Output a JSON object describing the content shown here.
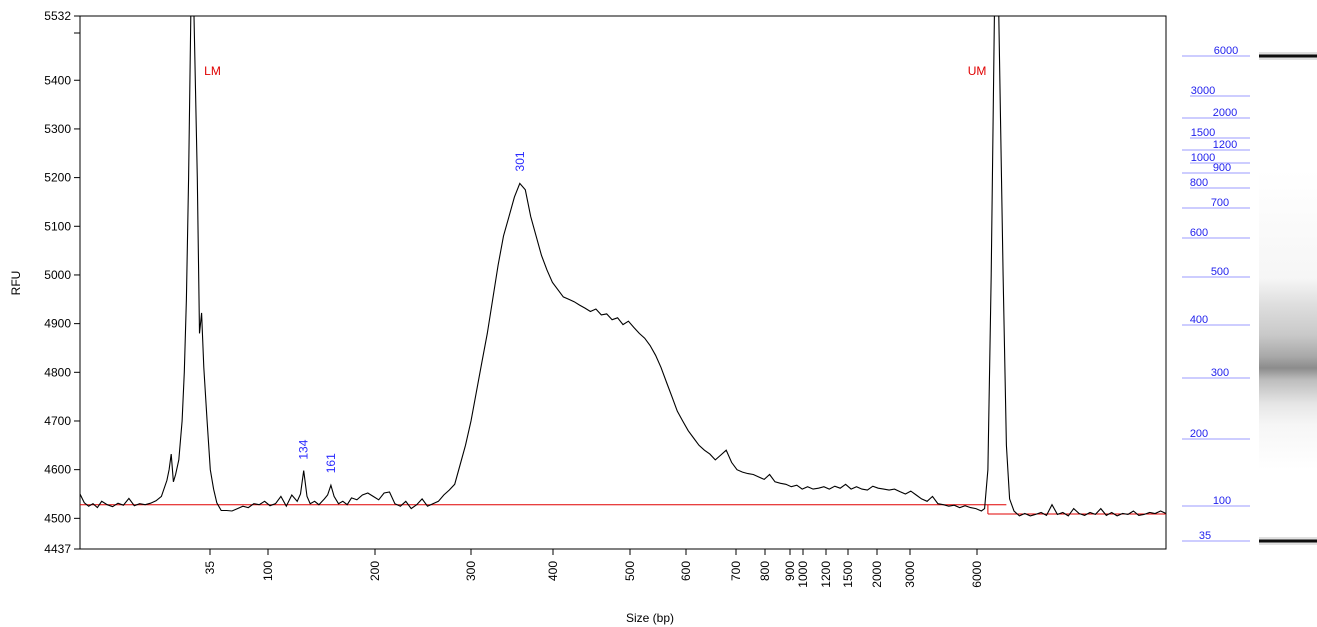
{
  "chart_data": {
    "type": "line",
    "xlabel": "Size (bp)",
    "ylabel": "RFU",
    "ylim": [
      4437,
      5532
    ],
    "y_ticks": [
      "5532",
      "5400",
      "5300",
      "5200",
      "5100",
      "5000",
      "4900",
      "4800",
      "4700",
      "4600",
      "4500",
      "4437"
    ],
    "x_ticks": [
      "35",
      "100",
      "200",
      "300",
      "400",
      "500",
      "600",
      "700",
      "800",
      "900",
      "1000",
      "1200",
      "1500",
      "2000",
      "3000",
      "6000"
    ],
    "baseline_rfu": 4528,
    "markers": [
      {
        "label": "LM",
        "size_bp": 35
      },
      {
        "label": "UM",
        "size_bp": 6000
      }
    ],
    "peak_labels": [
      {
        "label": "134",
        "size_bp": 134,
        "rfu": 4596
      },
      {
        "label": "161",
        "size_bp": 161,
        "rfu": 4568
      },
      {
        "label": "301",
        "size_bp": 301,
        "rfu": 5188
      }
    ],
    "series": [
      {
        "values": [
          [
            0,
            4550
          ],
          [
            0.4,
            4532
          ],
          [
            0.8,
            4525
          ],
          [
            1.2,
            4530
          ],
          [
            1.6,
            4522
          ],
          [
            2.0,
            4535
          ],
          [
            2.5,
            4528
          ],
          [
            3.0,
            4524
          ],
          [
            3.5,
            4531
          ],
          [
            4.0,
            4527
          ],
          [
            4.5,
            4541
          ],
          [
            5.0,
            4526
          ],
          [
            5.5,
            4530
          ],
          [
            6.0,
            4528
          ],
          [
            6.5,
            4531
          ],
          [
            7.0,
            4536
          ],
          [
            7.5,
            4545
          ],
          [
            8.0,
            4578
          ],
          [
            8.2,
            4600
          ],
          [
            8.4,
            4632
          ],
          [
            8.6,
            4575
          ],
          [
            8.8,
            4590
          ],
          [
            9.1,
            4620
          ],
          [
            9.4,
            4700
          ],
          [
            9.6,
            4800
          ],
          [
            9.8,
            4950
          ],
          [
            10.0,
            5200
          ],
          [
            10.2,
            5532
          ],
          [
            10.5,
            5532
          ],
          [
            10.8,
            5200
          ],
          [
            11.0,
            4880
          ],
          [
            11.2,
            4922
          ],
          [
            11.4,
            4810
          ],
          [
            11.7,
            4700
          ],
          [
            12.0,
            4600
          ],
          [
            12.3,
            4560
          ],
          [
            12.6,
            4532
          ],
          [
            13.0,
            4516
          ],
          [
            13.5,
            4516
          ],
          [
            14.0,
            4515
          ],
          [
            14.5,
            4520
          ],
          [
            15.0,
            4525
          ],
          [
            15.5,
            4522
          ],
          [
            16.0,
            4530
          ],
          [
            16.5,
            4528
          ],
          [
            17.0,
            4535
          ],
          [
            17.5,
            4526
          ],
          [
            18.0,
            4530
          ],
          [
            18.5,
            4545
          ],
          [
            19.0,
            4525
          ],
          [
            19.5,
            4548
          ],
          [
            20.0,
            4535
          ],
          [
            20.3,
            4550
          ],
          [
            20.6,
            4598
          ],
          [
            20.9,
            4545
          ],
          [
            21.2,
            4530
          ],
          [
            21.6,
            4535
          ],
          [
            22.0,
            4528
          ],
          [
            22.5,
            4540
          ],
          [
            22.8,
            4548
          ],
          [
            23.1,
            4568
          ],
          [
            23.4,
            4545
          ],
          [
            23.8,
            4530
          ],
          [
            24.2,
            4535
          ],
          [
            24.6,
            4528
          ],
          [
            25.0,
            4542
          ],
          [
            25.5,
            4538
          ],
          [
            26.0,
            4548
          ],
          [
            26.5,
            4552
          ],
          [
            27.0,
            4545
          ],
          [
            27.5,
            4538
          ],
          [
            28.0,
            4552
          ],
          [
            28.5,
            4554
          ],
          [
            29.0,
            4530
          ],
          [
            29.5,
            4525
          ],
          [
            30.0,
            4535
          ],
          [
            30.5,
            4520
          ],
          [
            31.0,
            4528
          ],
          [
            31.5,
            4540
          ],
          [
            32.0,
            4525
          ],
          [
            32.5,
            4530
          ],
          [
            33.0,
            4535
          ],
          [
            33.5,
            4548
          ],
          [
            34.0,
            4558
          ],
          [
            34.5,
            4570
          ],
          [
            35.0,
            4610
          ],
          [
            35.5,
            4650
          ],
          [
            36.0,
            4700
          ],
          [
            36.5,
            4760
          ],
          [
            37.0,
            4820
          ],
          [
            37.5,
            4880
          ],
          [
            38.0,
            4950
          ],
          [
            38.5,
            5020
          ],
          [
            39.0,
            5080
          ],
          [
            39.5,
            5120
          ],
          [
            40.0,
            5160
          ],
          [
            40.5,
            5188
          ],
          [
            41.0,
            5175
          ],
          [
            41.5,
            5120
          ],
          [
            42.0,
            5080
          ],
          [
            42.5,
            5040
          ],
          [
            43.0,
            5010
          ],
          [
            43.5,
            4985
          ],
          [
            44.0,
            4970
          ],
          [
            44.5,
            4955
          ],
          [
            45.0,
            4950
          ],
          [
            45.5,
            4945
          ],
          [
            46.0,
            4938
          ],
          [
            46.5,
            4932
          ],
          [
            47.0,
            4925
          ],
          [
            47.5,
            4930
          ],
          [
            48.0,
            4918
          ],
          [
            48.5,
            4920
          ],
          [
            49.0,
            4908
          ],
          [
            49.5,
            4912
          ],
          [
            50.0,
            4898
          ],
          [
            50.5,
            4905
          ],
          [
            51.0,
            4892
          ],
          [
            51.5,
            4880
          ],
          [
            52.0,
            4870
          ],
          [
            52.5,
            4855
          ],
          [
            53.0,
            4835
          ],
          [
            53.5,
            4810
          ],
          [
            54.0,
            4780
          ],
          [
            54.5,
            4750
          ],
          [
            55.0,
            4720
          ],
          [
            55.5,
            4700
          ],
          [
            56.0,
            4680
          ],
          [
            56.5,
            4665
          ],
          [
            57.0,
            4650
          ],
          [
            57.5,
            4640
          ],
          [
            58.0,
            4632
          ],
          [
            58.5,
            4620
          ],
          [
            59.0,
            4630
          ],
          [
            59.5,
            4640
          ],
          [
            60.0,
            4615
          ],
          [
            60.5,
            4600
          ],
          [
            61.0,
            4595
          ],
          [
            61.5,
            4592
          ],
          [
            62.0,
            4590
          ],
          [
            62.5,
            4585
          ],
          [
            63.0,
            4580
          ],
          [
            63.5,
            4590
          ],
          [
            64.0,
            4575
          ],
          [
            64.5,
            4572
          ],
          [
            65.0,
            4570
          ],
          [
            65.5,
            4565
          ],
          [
            66.0,
            4568
          ],
          [
            66.5,
            4560
          ],
          [
            67.0,
            4565
          ],
          [
            67.5,
            4560
          ],
          [
            68.0,
            4562
          ],
          [
            68.5,
            4565
          ],
          [
            69.0,
            4560
          ],
          [
            69.5,
            4566
          ],
          [
            70.0,
            4562
          ],
          [
            70.5,
            4570
          ],
          [
            71.0,
            4560
          ],
          [
            71.5,
            4565
          ],
          [
            72.0,
            4560
          ],
          [
            72.5,
            4558
          ],
          [
            73.0,
            4566
          ],
          [
            73.5,
            4562
          ],
          [
            74.0,
            4560
          ],
          [
            74.5,
            4558
          ],
          [
            75.0,
            4560
          ],
          [
            75.5,
            4555
          ],
          [
            76.0,
            4550
          ],
          [
            76.5,
            4556
          ],
          [
            77.0,
            4548
          ],
          [
            77.5,
            4540
          ],
          [
            78.0,
            4535
          ],
          [
            78.5,
            4545
          ],
          [
            79.0,
            4530
          ],
          [
            79.5,
            4528
          ],
          [
            80.0,
            4525
          ],
          [
            80.5,
            4527
          ],
          [
            81.0,
            4522
          ],
          [
            81.5,
            4526
          ],
          [
            82.0,
            4522
          ],
          [
            82.5,
            4520
          ],
          [
            83.0,
            4515
          ],
          [
            83.3,
            4520
          ],
          [
            83.6,
            4600
          ],
          [
            83.9,
            5000
          ],
          [
            84.2,
            5532
          ],
          [
            84.6,
            5532
          ],
          [
            85.0,
            5000
          ],
          [
            85.3,
            4650
          ],
          [
            85.6,
            4540
          ],
          [
            86.0,
            4515
          ],
          [
            86.5,
            4505
          ],
          [
            87.0,
            4510
          ],
          [
            87.5,
            4505
          ],
          [
            88.0,
            4508
          ],
          [
            88.5,
            4512
          ],
          [
            89.0,
            4506
          ],
          [
            89.5,
            4528
          ],
          [
            90.0,
            4508
          ],
          [
            90.5,
            4512
          ],
          [
            91.0,
            4505
          ],
          [
            91.5,
            4520
          ],
          [
            92.0,
            4510
          ],
          [
            92.5,
            4506
          ],
          [
            93.0,
            4512
          ],
          [
            93.5,
            4508
          ],
          [
            94.0,
            4520
          ],
          [
            94.5,
            4506
          ],
          [
            95.0,
            4512
          ],
          [
            95.5,
            4505
          ],
          [
            96.0,
            4510
          ],
          [
            96.5,
            4508
          ],
          [
            97.0,
            4515
          ],
          [
            97.5,
            4506
          ],
          [
            98.0,
            4508
          ],
          [
            98.5,
            4512
          ],
          [
            99.0,
            4510
          ],
          [
            99.5,
            4515
          ],
          [
            100,
            4510
          ]
        ]
      }
    ],
    "gel_lane_ladder": [
      "6000",
      "3000",
      "2000",
      "1500",
      "1200",
      "1000",
      "900",
      "800",
      "700",
      "600",
      "500",
      "400",
      "300",
      "200",
      "100",
      "35"
    ],
    "gel_bands": [
      {
        "size_bp": 6000,
        "intensity": 1.0
      },
      {
        "size_bp": 301,
        "intensity": 0.55
      },
      {
        "size_bp": 35,
        "intensity": 1.0
      }
    ]
  }
}
